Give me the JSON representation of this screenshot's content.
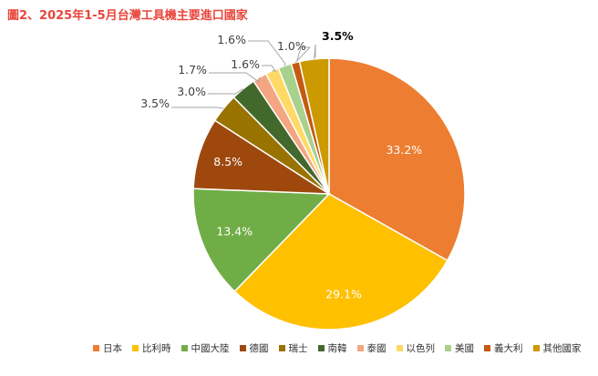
{
  "chart_data": {
    "type": "pie",
    "title": "圖2、2025年1-5月台灣工具機主要進口國家",
    "categories": [
      "日本",
      "比利時",
      "中國大陸",
      "德國",
      "瑞士",
      "南韓",
      "泰國",
      "以色列",
      "美國",
      "義大利",
      "其他國家"
    ],
    "values": [
      33.2,
      29.1,
      13.4,
      8.5,
      3.5,
      3.0,
      1.7,
      1.6,
      1.6,
      1.0,
      3.5
    ],
    "data_labels": [
      "33.2%",
      "29.1%",
      "13.4%",
      "8.5%",
      "3.5%",
      "3.0%",
      "1.7%",
      "1.6%",
      "1.6%",
      "1.0%",
      "3.5%"
    ],
    "colors": [
      "#ed7d31",
      "#ffc000",
      "#70ad47",
      "#9e480e",
      "#997300",
      "#43682b",
      "#f4a582",
      "#ffd966",
      "#a9d18e",
      "#c55a11",
      "#cc9900"
    ],
    "legend_position": "bottom"
  }
}
